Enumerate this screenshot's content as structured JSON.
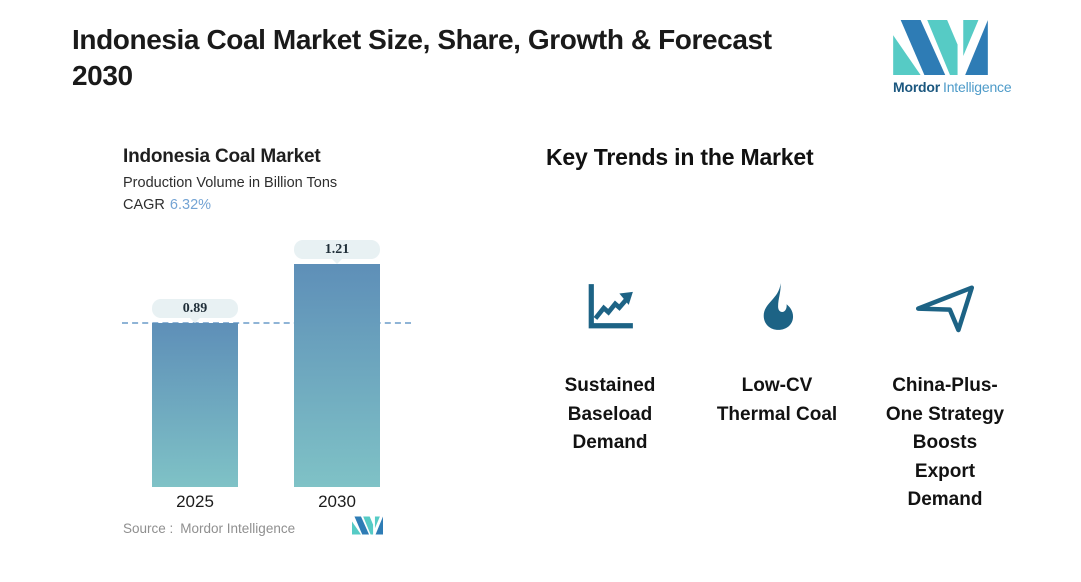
{
  "header": {
    "title": "Indonesia Coal Market Size, Share, Growth & Forecast\n2030"
  },
  "brand": {
    "name_bold": "Mordor",
    "name_light": "Intelligence"
  },
  "chart": {
    "title": "Indonesia Coal Market",
    "subtitle": "Production Volume in Billion Tons",
    "cagr_label": "CAGR",
    "cagr_value": "6.32%",
    "source_label": "Source :",
    "source_value": "Mordor Intelligence"
  },
  "chart_data": {
    "type": "bar",
    "title": "Indonesia Coal Market",
    "ylabel": "Production Volume in Billion Tons",
    "unit": "Billion Tons",
    "cagr_percent": 6.32,
    "categories": [
      "2025",
      "2030"
    ],
    "values": [
      0.89,
      1.21
    ],
    "bar_labels": [
      "0.89",
      "1.21"
    ],
    "reference_line": 0.89,
    "ylim": [
      0,
      1.35
    ],
    "grid": false,
    "legend": false,
    "bar_gradient": [
      "#5E8FB8",
      "#7FC2C6"
    ]
  },
  "trends": {
    "heading": "Key Trends in the Market",
    "items": [
      {
        "icon": "line-chart-icon",
        "label": "Sustained\nBaseload\nDemand"
      },
      {
        "icon": "flame-icon",
        "label": "Low-CV\nThermal Coal"
      },
      {
        "icon": "paper-plane-icon",
        "label": "China-Plus-\nOne Strategy\nBoosts\nExport\nDemand"
      }
    ]
  },
  "colors": {
    "accent_blue": "#74A4D4",
    "icon_teal": "#1D6385",
    "badge_bg": "#E8F1F3",
    "dash_line": "#8FB4D6",
    "logo_blue": "#2E7CB5",
    "logo_teal": "#56CBC5",
    "logo_text_dark": "#1B577F",
    "logo_text_light": "#4E9BC9",
    "source_gray": "#8F8F8F"
  }
}
